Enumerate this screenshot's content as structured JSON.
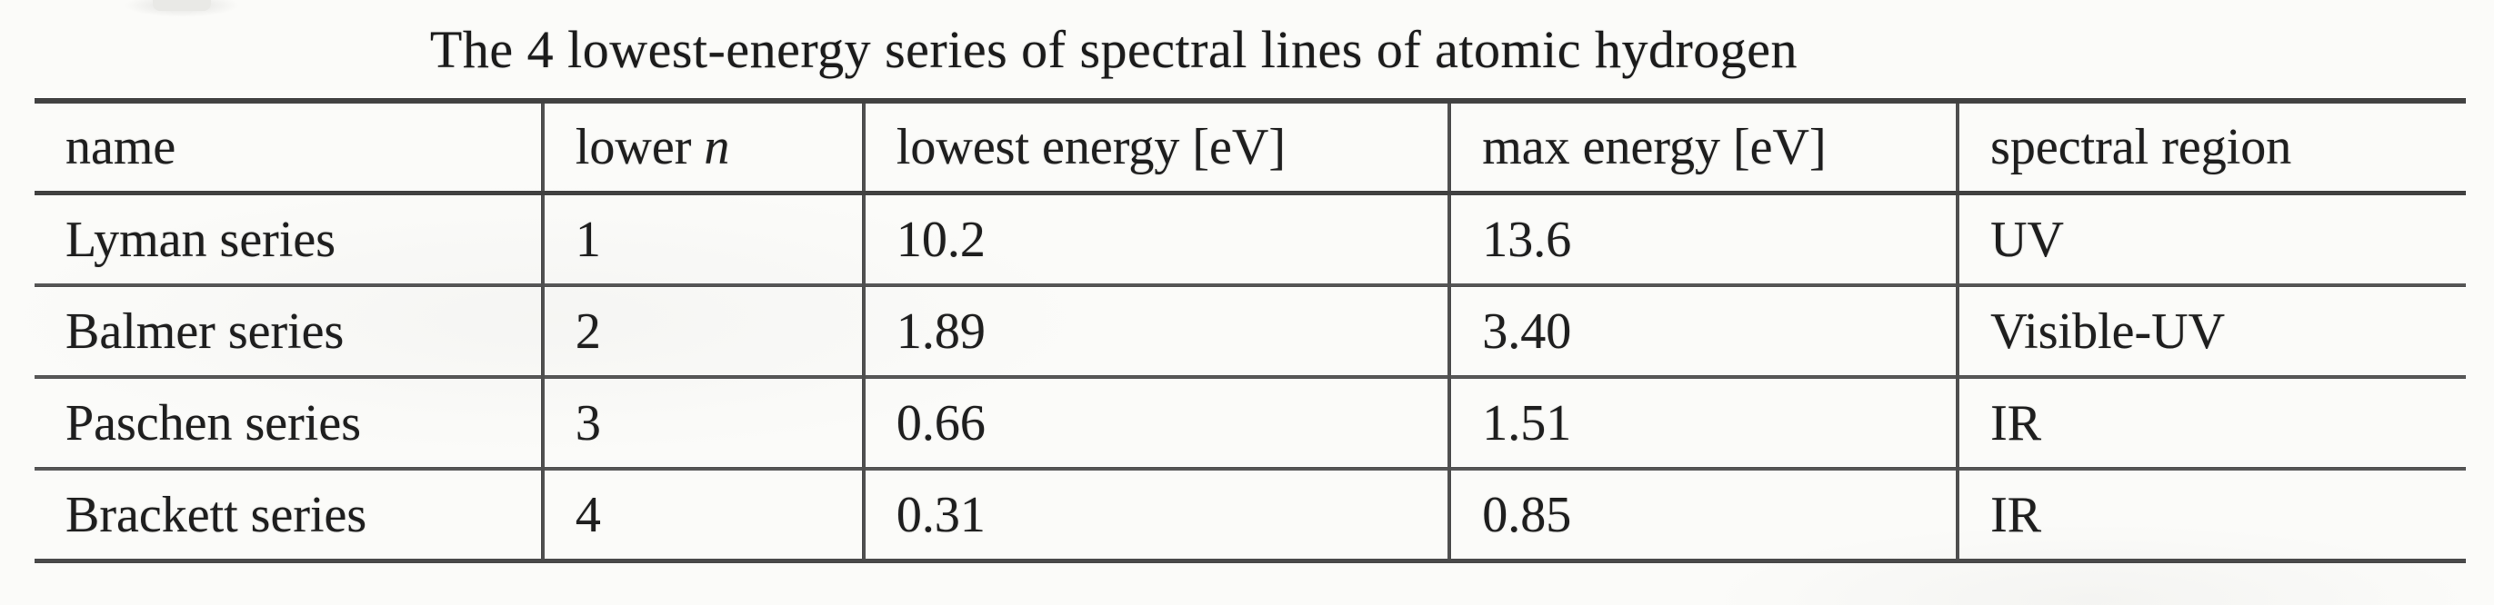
{
  "title": "The 4 lowest-energy series of spectral lines of atomic hydrogen",
  "table": {
    "headers": {
      "name": "name",
      "lower_n_text": "lower ",
      "lower_n_italic": "n",
      "lowest_energy": "lowest energy [eV]",
      "max_energy": "max energy [eV]",
      "spectral_region": "spectral region"
    },
    "rows": [
      {
        "name": "Lyman series",
        "lower_n": "1",
        "lowest_energy_ev": "10.2",
        "max_energy_ev": "13.6",
        "spectral_region": "UV"
      },
      {
        "name": "Balmer series",
        "lower_n": "2",
        "lowest_energy_ev": "1.89",
        "max_energy_ev": "3.40",
        "spectral_region": "Visible-UV"
      },
      {
        "name": "Paschen series",
        "lower_n": "3",
        "lowest_energy_ev": "0.66",
        "max_energy_ev": "1.51",
        "spectral_region": "IR"
      },
      {
        "name": "Brackett series",
        "lower_n": "4",
        "lowest_energy_ev": "0.31",
        "max_energy_ev": "0.85",
        "spectral_region": "IR"
      }
    ]
  },
  "colors": {
    "background": "#fbfbf9",
    "rule": "#4a4a4a",
    "text": "#1e1e1e"
  }
}
